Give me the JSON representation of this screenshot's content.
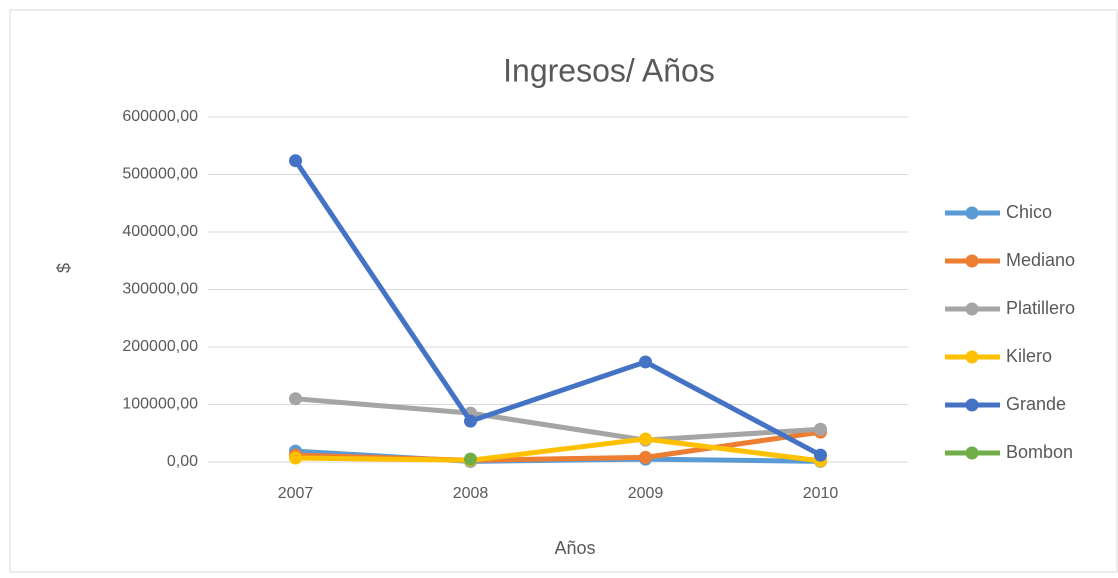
{
  "chart_data": {
    "type": "line",
    "title": "Ingresos/ Años",
    "x_label": "Años",
    "y_label": "$",
    "categories": [
      "2007",
      "2008",
      "2009",
      "2010"
    ],
    "ylim": [
      0,
      600000
    ],
    "yticks": [
      {
        "value": 0,
        "label": "0,00"
      },
      {
        "value": 100000,
        "label": "100000,00"
      },
      {
        "value": 200000,
        "label": "200000,00"
      },
      {
        "value": 300000,
        "label": "300000,00"
      },
      {
        "value": 400000,
        "label": "400000,00"
      },
      {
        "value": 500000,
        "label": "500000,00"
      },
      {
        "value": 600000,
        "label": "600000,00"
      }
    ],
    "grid": true,
    "legend": "right",
    "series": [
      {
        "name": "Chico",
        "color": "#5b9bd5",
        "values": [
          19000,
          1000,
          5000,
          1000
        ]
      },
      {
        "name": "Mediano",
        "color": "#ed7d31",
        "values": [
          12000,
          3000,
          8000,
          52000
        ]
      },
      {
        "name": "Platillero",
        "color": "#a5a5a5",
        "values": [
          110000,
          85000,
          38000,
          57000
        ]
      },
      {
        "name": "Kilero",
        "color": "#ffc000",
        "values": [
          7000,
          3000,
          40000,
          2000
        ]
      },
      {
        "name": "Grande",
        "color": "#4472c4",
        "values": [
          524000,
          71000,
          174000,
          12000
        ]
      },
      {
        "name": "Bombon",
        "color": "#70ad47",
        "values": [
          null,
          5000,
          null,
          null
        ]
      }
    ]
  }
}
